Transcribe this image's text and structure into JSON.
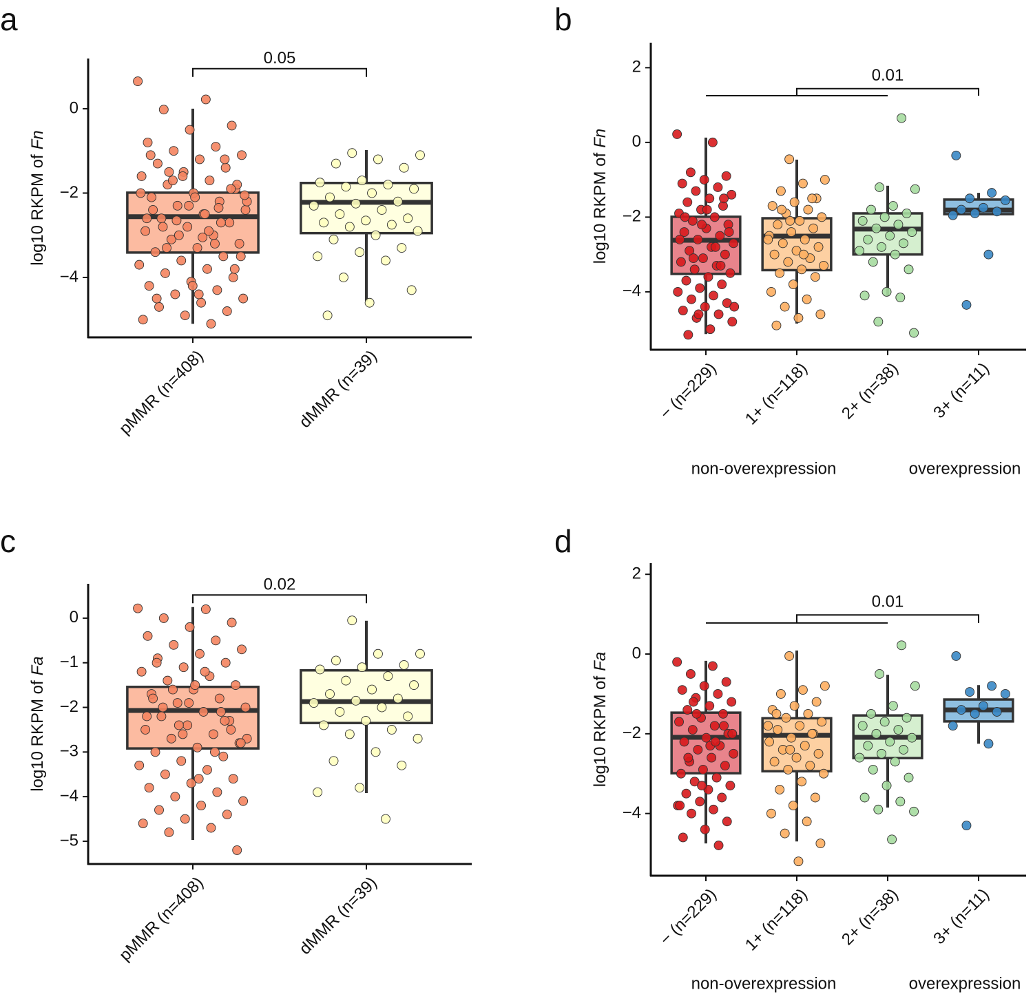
{
  "chart_data": [
    {
      "type": "box",
      "panel": "a",
      "ylabel": [
        "log10 RKPM of",
        "Fn"
      ],
      "ylim": [
        -5.42,
        1.19
      ],
      "yticks": [
        {
          "value": -4,
          "label": "−4"
        },
        {
          "value": -2,
          "label": "−2"
        },
        0
      ],
      "bracket": {
        "label": "0.05",
        "y": 0.95
      },
      "groups": [
        {
          "label": "pMMR (n=408)",
          "fill": "#fcbba1",
          "point_color": "#f4845f",
          "whisker_low": -5.1,
          "q1": -3.41,
          "median": -2.56,
          "q3": -1.99,
          "whisker_high": 0,
          "points": [
            0.65,
            0.22,
            -0.02,
            -0.4,
            -0.5,
            -0.8,
            -0.9,
            -1.0,
            -1.1,
            -1.2,
            -1.3,
            -1.4,
            -1.5,
            -1.6,
            -1.7,
            -1.8,
            -1.9,
            -2.0,
            -2.1,
            -2.2,
            -2.3,
            -2.4,
            -2.5,
            -2.6,
            -2.7,
            -2.8,
            -2.9,
            -3.0,
            -3.1,
            -3.2,
            -3.3,
            -3.4,
            -3.5,
            -3.6,
            -3.7,
            -3.8,
            -3.9,
            -4.0,
            -4.1,
            -4.2,
            -4.3,
            -4.4,
            -4.5,
            -4.6,
            -4.7,
            -4.8,
            -4.9,
            -5.0,
            -5.1,
            -1.5,
            -1.8,
            -2.1,
            -2.4,
            -2.7,
            -3.0,
            -2.2,
            -2.5,
            -2.8,
            -1.9,
            -2.3,
            -2.6,
            -3.2,
            -1.7,
            -3.5,
            -4.4,
            -4.5,
            -1.2,
            -1.6,
            -2.0,
            -2.9,
            -3.3,
            -3.8,
            -4.2,
            -1.1,
            -2.35,
            -2.65,
            -2.05,
            -3.05
          ]
        },
        {
          "label": "dMMR (n=39)",
          "fill": "#ffffe0",
          "point_color": "#ffffc0",
          "whisker_low": -4.57,
          "q1": -2.95,
          "median": -2.22,
          "q3": -1.76,
          "whisker_high": -0.98,
          "points": [
            -1.05,
            -1.1,
            -1.2,
            -1.3,
            -1.4,
            -1.7,
            -1.75,
            -1.8,
            -1.85,
            -1.9,
            -2.0,
            -2.1,
            -2.2,
            -2.25,
            -2.3,
            -2.4,
            -2.5,
            -2.6,
            -2.65,
            -2.7,
            -2.75,
            -2.8,
            -2.9,
            -3.0,
            -3.1,
            -3.3,
            -3.4,
            -3.5,
            -3.6,
            -4.0,
            -4.3,
            -4.6,
            -4.9
          ]
        }
      ]
    },
    {
      "type": "box",
      "panel": "b",
      "ylabel": [
        "log10 RKPM of",
        "Fn"
      ],
      "ylim": [
        -5.55,
        2.67
      ],
      "yticks": [
        {
          "value": -4,
          "label": "−4"
        },
        {
          "value": -2,
          "label": "−2"
        },
        0,
        2
      ],
      "bracket": {
        "label": "0.01",
        "y": 1.25,
        "y2": 1.44
      },
      "group_labels": [
        "non-overexpression",
        "overexpression"
      ],
      "groups": [
        {
          "label": "− (n=229)",
          "fill": "#e8848c",
          "point_color": "#d7191c",
          "whisker_low": -5.13,
          "q1": -3.52,
          "median": -2.62,
          "q3": -1.99,
          "whisker_high": 0.13,
          "points": [
            0.22,
            0.0,
            -0.8,
            -0.9,
            -1.0,
            -1.1,
            -1.2,
            -1.3,
            -1.4,
            -1.5,
            -1.6,
            -1.7,
            -1.8,
            -1.9,
            -2.0,
            -2.1,
            -2.2,
            -2.3,
            -2.4,
            -2.5,
            -2.6,
            -2.7,
            -2.8,
            -2.9,
            -3.0,
            -3.1,
            -3.2,
            -3.3,
            -3.4,
            -3.5,
            -3.6,
            -3.7,
            -3.8,
            -3.9,
            -4.0,
            -4.1,
            -4.2,
            -4.3,
            -4.4,
            -4.5,
            -4.6,
            -4.7,
            -4.8,
            -5.0,
            -5.15,
            -1.5,
            -2.2,
            -2.6,
            -2.8,
            -3.1,
            -2.4,
            -1.8,
            -2.0,
            -3.3,
            -4.6,
            -4.4
          ]
        },
        {
          "label": "1+ (n=118)",
          "fill": "#fdd0a2",
          "point_color": "#fdae61",
          "whisker_low": -4.85,
          "q1": -3.42,
          "median": -2.51,
          "q3": -2.03,
          "whisker_high": -0.46,
          "points": [
            -0.45,
            -1.0,
            -1.1,
            -1.3,
            -1.5,
            -1.6,
            -1.7,
            -1.8,
            -1.9,
            -2.0,
            -2.1,
            -2.2,
            -2.3,
            -2.4,
            -2.5,
            -2.6,
            -2.7,
            -2.8,
            -2.9,
            -3.0,
            -3.1,
            -3.2,
            -3.3,
            -3.4,
            -3.5,
            -3.6,
            -3.8,
            -4.0,
            -4.2,
            -4.4,
            -4.6,
            -4.7,
            -4.9,
            -1.5,
            -2.1,
            -2.6,
            -3.0,
            -1.8
          ]
        },
        {
          "label": "2+ (n=38)",
          "fill": "#d5efcf",
          "point_color": "#a6dba0",
          "whisker_low": -4.11,
          "q1": -3.0,
          "median": -2.32,
          "q3": -1.9,
          "whisker_high": -1.16,
          "points": [
            0.65,
            -1.2,
            -1.25,
            -1.7,
            -1.8,
            -1.9,
            -2.0,
            -2.1,
            -2.2,
            -2.3,
            -2.4,
            -2.5,
            -2.6,
            -2.7,
            -2.8,
            -2.9,
            -3.0,
            -3.2,
            -3.4,
            -4.0,
            -4.1,
            -4.15,
            -4.8,
            -5.1
          ]
        },
        {
          "label": "3+ (n=11)",
          "fill": "#8fbfe0",
          "point_color": "#3a88c5",
          "whisker_low": -1.92,
          "q1": -1.92,
          "median": -1.81,
          "q3": -1.53,
          "whisker_high": -1.35,
          "points": [
            -0.35,
            -1.35,
            -1.5,
            -1.55,
            -1.75,
            -1.8,
            -1.85,
            -1.9,
            -1.95,
            -3.0,
            -4.35
          ]
        }
      ]
    },
    {
      "type": "box",
      "panel": "c",
      "ylabel": [
        "log10 RKPM of",
        "Fa"
      ],
      "ylim": [
        -5.51,
        0.77
      ],
      "yticks": [
        {
          "value": -5,
          "label": "−5"
        },
        {
          "value": -4,
          "label": "−4"
        },
        {
          "value": -3,
          "label": "−3"
        },
        {
          "value": -2,
          "label": "−2"
        },
        {
          "value": -1,
          "label": "−1"
        },
        0
      ],
      "bracket": {
        "label": "0.02",
        "y": 0.52
      },
      "groups": [
        {
          "label": "pMMR (n=408)",
          "fill": "#fcbba1",
          "point_color": "#f4845f",
          "whisker_low": -4.97,
          "q1": -2.92,
          "median": -2.07,
          "q3": -1.54,
          "whisker_high": 0.25,
          "points": [
            0.22,
            0.2,
            0.0,
            -0.1,
            -0.2,
            -0.4,
            -0.5,
            -0.6,
            -0.7,
            -0.8,
            -0.9,
            -1.0,
            -1.1,
            -1.2,
            -1.3,
            -1.4,
            -1.5,
            -1.6,
            -1.7,
            -1.8,
            -1.9,
            -2.0,
            -2.1,
            -2.2,
            -2.3,
            -2.4,
            -2.5,
            -2.6,
            -2.7,
            -2.8,
            -2.9,
            -3.0,
            -3.1,
            -3.2,
            -3.3,
            -3.4,
            -3.5,
            -3.6,
            -3.7,
            -3.8,
            -3.9,
            -4.0,
            -4.1,
            -4.2,
            -4.3,
            -4.4,
            -4.5,
            -4.6,
            -4.7,
            -4.8,
            -5.2,
            -1.5,
            -1.8,
            -2.1,
            -2.4,
            -2.7,
            -1.2,
            -2.0,
            -2.5,
            -1.9,
            -2.2,
            -3.0,
            -1.6,
            -2.8,
            -3.6,
            -1.0,
            -2.3,
            -2.6
          ]
        },
        {
          "label": "dMMR (n=39)",
          "fill": "#ffffe0",
          "point_color": "#ffffc0",
          "whisker_low": -3.92,
          "q1": -2.35,
          "median": -1.87,
          "q3": -1.17,
          "whisker_high": -0.06,
          "points": [
            -0.05,
            -0.8,
            -0.8,
            -0.95,
            -1.05,
            -1.1,
            -1.15,
            -1.3,
            -1.4,
            -1.5,
            -1.6,
            -1.7,
            -1.8,
            -1.85,
            -1.9,
            -2.0,
            -2.1,
            -2.2,
            -2.3,
            -2.4,
            -2.5,
            -2.6,
            -2.7,
            -3.0,
            -3.2,
            -3.3,
            -3.8,
            -3.9,
            -4.5
          ]
        }
      ]
    },
    {
      "type": "box",
      "panel": "d",
      "ylabel": [
        "log10 RKPM of",
        "Fa"
      ],
      "ylim": [
        -5.56,
        2.28
      ],
      "yticks": [
        {
          "value": -4,
          "label": "−4"
        },
        {
          "value": -2,
          "label": "−2"
        },
        0,
        2
      ],
      "bracket": {
        "label": "0.01",
        "y": 0.78,
        "y2": 0.98
      },
      "group_labels": [
        "non-overexpression",
        "overexpression"
      ],
      "groups": [
        {
          "label": "− (n=229)",
          "fill": "#e8848c",
          "point_color": "#d7191c",
          "whisker_low": -4.75,
          "q1": -2.99,
          "median": -2.09,
          "q3": -1.47,
          "whisker_high": -0.17,
          "points": [
            -0.2,
            -0.3,
            -0.5,
            -0.7,
            -0.8,
            -0.9,
            -1.0,
            -1.1,
            -1.2,
            -1.3,
            -1.4,
            -1.5,
            -1.6,
            -1.7,
            -1.8,
            -1.9,
            -2.0,
            -2.1,
            -2.2,
            -2.3,
            -2.4,
            -2.5,
            -2.6,
            -2.7,
            -2.8,
            -2.9,
            -3.0,
            -3.1,
            -3.2,
            -3.3,
            -3.4,
            -3.5,
            -3.6,
            -3.7,
            -3.8,
            -3.9,
            -4.0,
            -4.2,
            -4.4,
            -4.6,
            -4.8,
            -1.5,
            -2.0,
            -2.3,
            -2.6,
            -1.8,
            -3.3,
            -3.8,
            -2.2,
            -1.2
          ]
        },
        {
          "label": "1+ (n=118)",
          "fill": "#fdd0a2",
          "point_color": "#fdae61",
          "whisker_low": -4.7,
          "q1": -2.94,
          "median": -2.04,
          "q3": -1.61,
          "whisker_high": 0.09,
          "points": [
            -0.05,
            -0.8,
            -0.9,
            -1.0,
            -1.2,
            -1.3,
            -1.4,
            -1.5,
            -1.6,
            -1.7,
            -1.8,
            -1.9,
            -2.0,
            -2.1,
            -2.2,
            -2.3,
            -2.4,
            -2.5,
            -2.6,
            -2.7,
            -2.8,
            -2.9,
            -3.0,
            -3.2,
            -3.4,
            -3.6,
            -3.8,
            -4.0,
            -4.2,
            -4.5,
            -4.75,
            -5.2,
            -1.5,
            -2.0,
            -2.4,
            -1.8
          ]
        },
        {
          "label": "2+ (n=38)",
          "fill": "#d5efcf",
          "point_color": "#a6dba0",
          "whisker_low": -3.85,
          "q1": -2.61,
          "median": -2.09,
          "q3": -1.54,
          "whisker_high": -0.52,
          "points": [
            0.22,
            -0.5,
            -0.8,
            -1.3,
            -1.5,
            -1.6,
            -1.7,
            -1.8,
            -1.9,
            -2.0,
            -2.1,
            -2.2,
            -2.3,
            -2.4,
            -2.5,
            -2.6,
            -2.7,
            -2.9,
            -3.1,
            -3.3,
            -3.6,
            -3.7,
            -3.9,
            -3.95,
            -4.65
          ]
        },
        {
          "label": "3+ (n=11)",
          "fill": "#8fbfe0",
          "point_color": "#3a88c5",
          "whisker_low": -2.25,
          "q1": -1.69,
          "median": -1.4,
          "q3": -1.14,
          "whisker_high": -0.78,
          "points": [
            -0.05,
            -0.8,
            -0.95,
            -1.0,
            -1.3,
            -1.4,
            -1.45,
            -1.5,
            -1.8,
            -2.25,
            -4.3
          ]
        }
      ]
    }
  ]
}
